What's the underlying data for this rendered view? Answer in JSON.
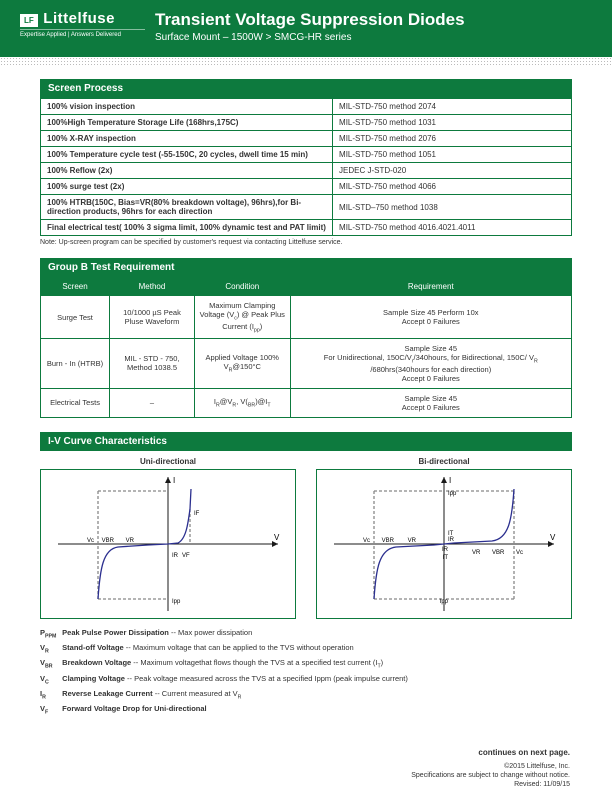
{
  "header": {
    "logo_box": "LF",
    "logo_text": "Littelfuse",
    "tagline": "Expertise Applied | Answers Delivered",
    "title_main": "Transient Voltage Suppression Diodes",
    "title_sub": "Surface Mount – 1500W  >  SMCG-HR series"
  },
  "screen_process": {
    "heading": "Screen Process",
    "rows": [
      {
        "l": "100% vision inspection",
        "r": "MIL-STD-750 method 2074"
      },
      {
        "l": "100%High Temperature Storage Life (168hrs,175C)",
        "r": "MIL-STD-750 method 1031"
      },
      {
        "l": "100% X-RAY inspection",
        "r": "MIL-STD-750 method 2076"
      },
      {
        "l": "100% Temperature cycle test (-55-150C, 20 cycles, dwell time 15 min)",
        "r": "MIL-STD-750 method 1051"
      },
      {
        "l": "100% Reflow (2x)",
        "r": "JEDEC J-STD-020"
      },
      {
        "l": "100% surge test   (2x)",
        "r": "MIL-STD-750 method 4066"
      },
      {
        "l": "100% HTRB(150C,  Bias=VR(80% breakdown voltage), 96hrs),for Bi-direction products, 96hrs for each direction",
        "r": "MIL-STD–750 method 1038"
      },
      {
        "l": "Final electrical test( 100% 3 sigma limit, 100% dynamic test and PAT limit)",
        "r": "MIL-STD-750 method 4016.4021.4011"
      }
    ],
    "note": "Note: Up-screen program can be specified by customer's request via contacting Littelfuse service."
  },
  "group_b": {
    "heading": "Group B Test Requirement",
    "headers": [
      "Screen",
      "Method",
      "Condition",
      "Requirement"
    ],
    "rows": [
      {
        "screen": "Surge Test",
        "method": "10/1000 µS Peak Pluse Waveform",
        "cond_html": "Maximum Clamping Voltage (V<sub>c</sub>) @ Peak Plus Current (I<sub>pp</sub>)",
        "req": "Sample Size 45  Perform 10x\nAccept 0 Failures"
      },
      {
        "screen": "Burn - In (HTRB)",
        "method": "MIL - STD - 750, Method 1038.5",
        "cond_html": "Applied Voltage 100% V<sub>R</sub>@150°C",
        "req": "Sample Size 45\nFor Unidirectional, 150C/V<sub>r</sub>/340hours, for Bidirectional, 150C/ V<sub>R</sub> /680hrs(340hours for each direction)\nAccept 0 Failures"
      },
      {
        "screen": "Electrical Tests",
        "method": "–",
        "cond_html": "I<sub>R</sub>@V<sub>R</sub>, V(<sub>BR</sub>)@I<sub>T</sub>",
        "req": "Sample Size 45\nAccept 0 Failures"
      }
    ]
  },
  "iv": {
    "heading": "I-V Curve Characteristics",
    "left_title": "Uni-directional",
    "right_title": "Bi-directional",
    "axis_color": "#1a1a1a",
    "curve_color": "#2b2f8f",
    "dash_color": "#888888"
  },
  "defs": [
    {
      "sym_html": "P<sub>PPM</sub>",
      "term": "Peak Pulse Power Dissipation",
      "desc": " -- Max power dissipation"
    },
    {
      "sym_html": "V<sub>R</sub>",
      "term": "Stand-off Voltage",
      "desc": " -- Maximum voltage that can be applied to the TVS without operation"
    },
    {
      "sym_html": "V<sub>BR</sub>",
      "term": "Breakdown Voltage",
      "desc": " --   Maximum voltagethat flows though the TVS at a specified test current (I<sub>T</sub>)"
    },
    {
      "sym_html": "V<sub>C</sub>",
      "term": "Clamping Voltage",
      "desc": " -- Peak voltage measured across the TVS at a specified Ippm (peak impulse current)"
    },
    {
      "sym_html": "I<sub>R</sub>",
      "term": "Reverse Leakage Current",
      "desc": " -- Current measured at V<sub>R</sub>"
    },
    {
      "sym_html": "V<sub>F</sub>",
      "term": "Forward Voltage Drop for Uni-directional",
      "desc": ""
    }
  ],
  "footer": {
    "cont": "continues on next page.",
    "lines": [
      "©2015 Littelfuse, Inc.",
      "Specifications are subject to change without notice.",
      "Revised: 11/09/15"
    ]
  }
}
